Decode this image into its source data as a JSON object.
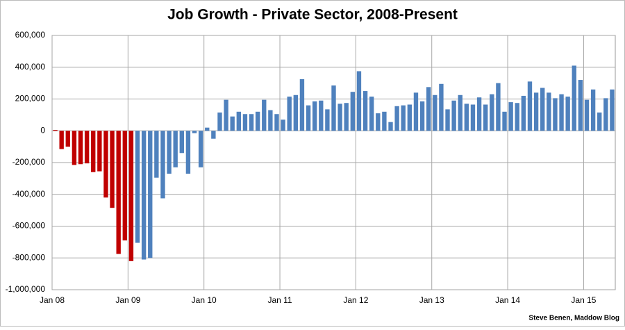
{
  "chart_data": {
    "type": "bar",
    "title": "Job Growth - Private Sector, 2008-Present",
    "source": "Steve Benen, Maddow Blog",
    "categories": [
      "Jan 08",
      null,
      null,
      null,
      null,
      null,
      null,
      null,
      null,
      null,
      null,
      null,
      "Jan 09",
      null,
      null,
      null,
      null,
      null,
      null,
      null,
      null,
      null,
      null,
      null,
      "Jan 10",
      null,
      null,
      null,
      null,
      null,
      null,
      null,
      null,
      null,
      null,
      null,
      "Jan 11",
      null,
      null,
      null,
      null,
      null,
      null,
      null,
      null,
      null,
      null,
      null,
      "Jan 12",
      null,
      null,
      null,
      null,
      null,
      null,
      null,
      null,
      null,
      null,
      null,
      "Jan 13",
      null,
      null,
      null,
      null,
      null,
      null,
      null,
      null,
      null,
      null,
      null,
      "Jan 14",
      null,
      null,
      null,
      null,
      null,
      null,
      null,
      null,
      null,
      null,
      null,
      "Jan 15",
      null,
      null,
      null,
      null
    ],
    "values": [
      5000,
      -115000,
      -100000,
      -215000,
      -210000,
      -205000,
      -260000,
      -255000,
      -420000,
      -485000,
      -775000,
      -690000,
      -820000,
      -705000,
      -810000,
      -800000,
      -295000,
      -425000,
      -270000,
      -230000,
      -140000,
      -270000,
      -15000,
      -230000,
      20000,
      -50000,
      115000,
      195000,
      90000,
      120000,
      105000,
      105000,
      120000,
      195000,
      130000,
      105000,
      70000,
      215000,
      225000,
      325000,
      160000,
      185000,
      190000,
      135000,
      285000,
      170000,
      175000,
      245000,
      375000,
      250000,
      215000,
      110000,
      120000,
      55000,
      155000,
      160000,
      165000,
      240000,
      185000,
      275000,
      225000,
      295000,
      135000,
      190000,
      225000,
      170000,
      165000,
      210000,
      165000,
      230000,
      300000,
      120000,
      180000,
      175000,
      220000,
      310000,
      240000,
      270000,
      240000,
      205000,
      230000,
      215000,
      410000,
      320000,
      195000,
      260000,
      115000,
      205000,
      260000
    ],
    "colors": [
      "#c00000",
      "#c00000",
      "#c00000",
      "#c00000",
      "#c00000",
      "#c00000",
      "#c00000",
      "#c00000",
      "#c00000",
      "#c00000",
      "#c00000",
      "#c00000",
      "#c00000",
      "#4f81bd",
      "#4f81bd",
      "#4f81bd",
      "#4f81bd",
      "#4f81bd",
      "#4f81bd",
      "#4f81bd",
      "#4f81bd",
      "#4f81bd",
      "#4f81bd",
      "#4f81bd",
      "#4f81bd",
      "#4f81bd",
      "#4f81bd",
      "#4f81bd",
      "#4f81bd",
      "#4f81bd",
      "#4f81bd",
      "#4f81bd",
      "#4f81bd",
      "#4f81bd",
      "#4f81bd",
      "#4f81bd",
      "#4f81bd",
      "#4f81bd",
      "#4f81bd",
      "#4f81bd",
      "#4f81bd",
      "#4f81bd",
      "#4f81bd",
      "#4f81bd",
      "#4f81bd",
      "#4f81bd",
      "#4f81bd",
      "#4f81bd",
      "#4f81bd",
      "#4f81bd",
      "#4f81bd",
      "#4f81bd",
      "#4f81bd",
      "#4f81bd",
      "#4f81bd",
      "#4f81bd",
      "#4f81bd",
      "#4f81bd",
      "#4f81bd",
      "#4f81bd",
      "#4f81bd",
      "#4f81bd",
      "#4f81bd",
      "#4f81bd",
      "#4f81bd",
      "#4f81bd",
      "#4f81bd",
      "#4f81bd",
      "#4f81bd",
      "#4f81bd",
      "#4f81bd",
      "#4f81bd",
      "#4f81bd",
      "#4f81bd",
      "#4f81bd",
      "#4f81bd",
      "#4f81bd",
      "#4f81bd",
      "#4f81bd",
      "#4f81bd",
      "#4f81bd",
      "#4f81bd",
      "#4f81bd",
      "#4f81bd",
      "#4f81bd",
      "#4f81bd",
      "#4f81bd",
      "#4f81bd",
      "#4f81bd"
    ],
    "ylim": [
      -1000000,
      600000
    ],
    "yticks": [
      {
        "value": -1000000,
        "label": "-1,000,000"
      },
      {
        "value": -800000,
        "label": "-800,000"
      },
      {
        "value": -600000,
        "label": "-600,000"
      },
      {
        "value": -400000,
        "label": "-400,000"
      },
      {
        "value": -200000,
        "label": "-200,000"
      },
      0,
      {
        "value": 200000,
        "label": "200,000"
      },
      {
        "value": 400000,
        "label": "400,000"
      },
      {
        "value": 600000,
        "label": "600,000"
      }
    ],
    "grid": true
  }
}
